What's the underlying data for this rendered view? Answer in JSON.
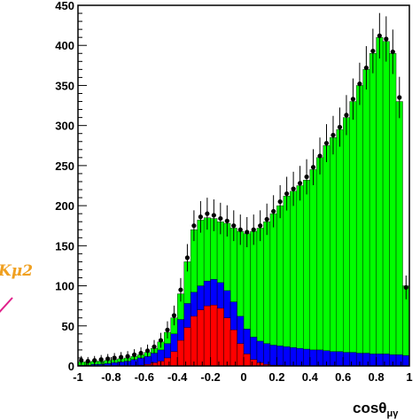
{
  "chart_data": {
    "type": "area",
    "xlabel": "cosθ",
    "xlabel_subscript": "μγ",
    "xlim": [
      -1,
      1
    ],
    "ylim": [
      0,
      450
    ],
    "xticks": [
      "-1",
      "-0.8",
      "-0.6",
      "-0.4",
      "-0.2",
      "0",
      "0.2",
      "0.4",
      "0.6",
      "0.8",
      "1"
    ],
    "yticks": [
      "0",
      "50",
      "100",
      "150",
      "200",
      "250",
      "300",
      "350",
      "400",
      "450"
    ],
    "annotation": {
      "text": "Kμ2",
      "color": "#f0a020",
      "arrow_color": "#e0208a"
    },
    "x": [
      -0.98,
      -0.94,
      -0.9,
      -0.86,
      -0.82,
      -0.78,
      -0.74,
      -0.7,
      -0.66,
      -0.62,
      -0.58,
      -0.54,
      -0.5,
      -0.46,
      -0.42,
      -0.38,
      -0.34,
      -0.3,
      -0.26,
      -0.22,
      -0.18,
      -0.14,
      -0.1,
      -0.06,
      -0.02,
      0.02,
      0.06,
      0.1,
      0.14,
      0.18,
      0.22,
      0.26,
      0.3,
      0.34,
      0.38,
      0.42,
      0.46,
      0.5,
      0.54,
      0.58,
      0.62,
      0.66,
      0.7,
      0.74,
      0.78,
      0.82,
      0.86,
      0.9,
      0.94,
      0.98
    ],
    "series": [
      {
        "color": "#ff0000",
        "values": [
          0,
          0,
          0,
          0,
          0,
          0,
          0,
          0,
          0,
          1,
          2,
          4,
          6,
          10,
          18,
          32,
          48,
          62,
          70,
          75,
          76,
          72,
          60,
          45,
          28,
          15,
          8,
          4,
          2,
          1,
          1,
          0,
          0,
          0,
          0,
          0,
          0,
          0,
          0,
          0,
          0,
          0,
          0,
          0,
          0,
          0,
          0,
          0,
          0,
          0
        ]
      },
      {
        "color": "#0000ff",
        "values": [
          1,
          1,
          2,
          2,
          3,
          4,
          5,
          6,
          8,
          10,
          12,
          16,
          20,
          28,
          40,
          58,
          78,
          92,
          100,
          106,
          108,
          104,
          94,
          80,
          62,
          46,
          36,
          31,
          28,
          26,
          25,
          24,
          23,
          22,
          21,
          20,
          20,
          19,
          18,
          18,
          17,
          17,
          16,
          16,
          15,
          15,
          15,
          14,
          14,
          13
        ]
      },
      {
        "color": "#00ff00",
        "values": [
          5,
          5,
          6,
          6,
          7,
          8,
          9,
          10,
          12,
          14,
          17,
          22,
          30,
          42,
          60,
          90,
          130,
          170,
          182,
          185,
          184,
          180,
          178,
          172,
          168,
          165,
          168,
          172,
          180,
          190,
          200,
          212,
          218,
          225,
          232,
          245,
          260,
          275,
          285,
          295,
          310,
          330,
          350,
          370,
          390,
          410,
          405,
          390,
          330,
          100
        ]
      },
      {
        "color": "#000000",
        "name": "",
        "style": "points",
        "values": [
          7,
          6,
          7,
          8,
          9,
          10,
          11,
          12,
          14,
          16,
          19,
          24,
          32,
          45,
          63,
          95,
          135,
          175,
          186,
          190,
          188,
          184,
          181,
          175,
          170,
          167,
          170,
          175,
          183,
          193,
          205,
          215,
          221,
          228,
          236,
          248,
          262,
          278,
          288,
          298,
          313,
          333,
          352,
          372,
          393,
          412,
          408,
          392,
          335,
          98
        ]
      }
    ]
  }
}
